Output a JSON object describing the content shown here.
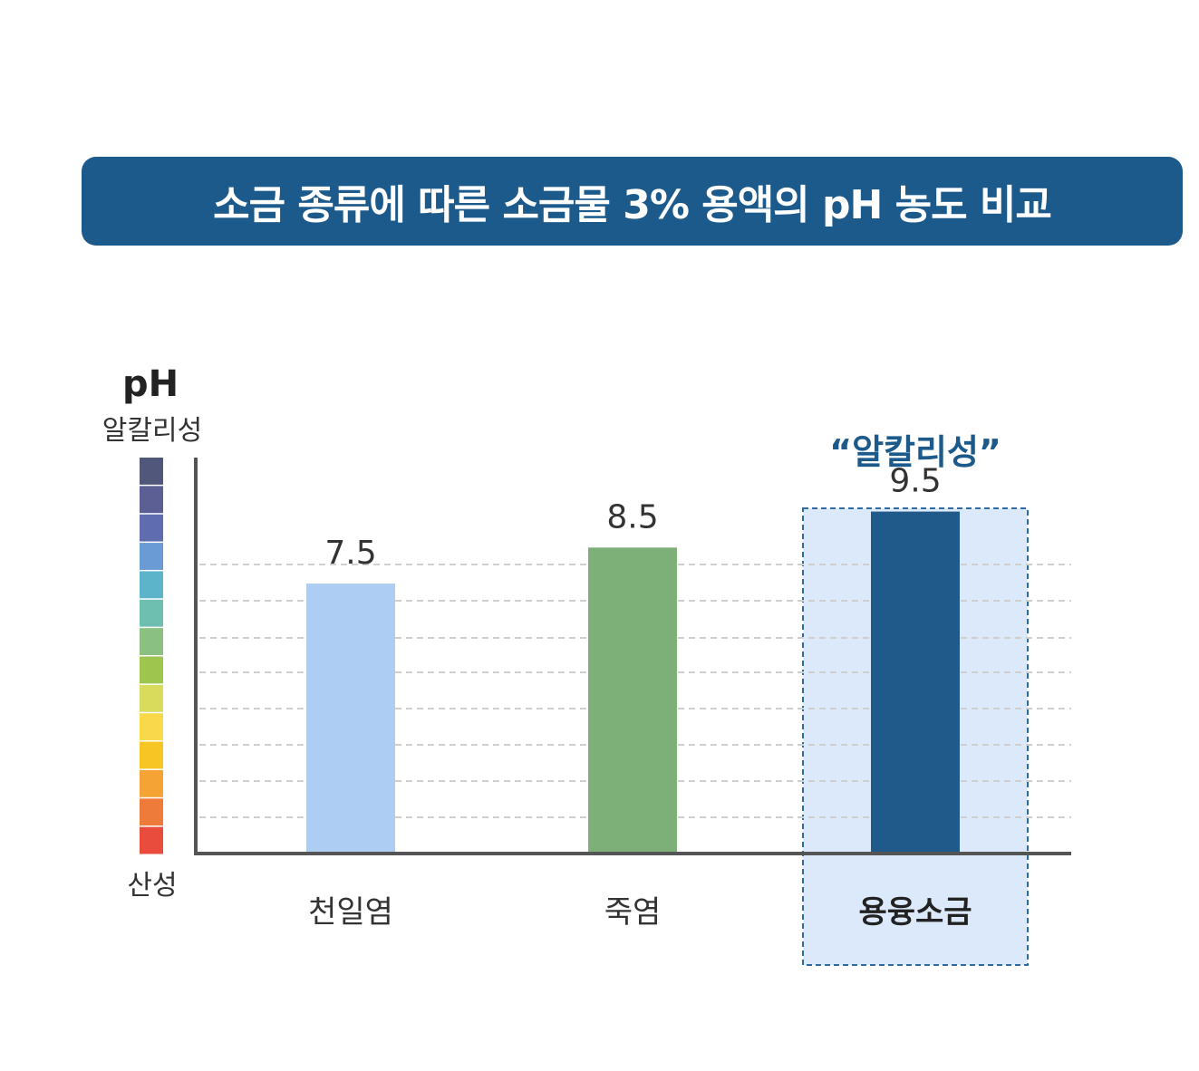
{
  "chart_data": {
    "type": "bar",
    "title": "소금 종류에 따른 소금물 3% 용액의 pH 농도 비교",
    "ylabel": "pH",
    "scale_top_label": "알칼리성",
    "scale_bottom_label": "산성",
    "categories": [
      "천일염",
      "죽염",
      "용융소금"
    ],
    "values": [
      7.5,
      8.5,
      9.5
    ],
    "value_labels": [
      "7.5",
      "8.5",
      "9.5"
    ],
    "bar_colors": [
      "#aecdf3",
      "#7daf78",
      "#1f5a8a"
    ],
    "highlight_index": 2,
    "highlight_label": "“알칼리성”",
    "ylim": [
      0,
      11
    ],
    "grid": true,
    "scale_colors": [
      "#e94b3c",
      "#ef7b3a",
      "#f5a334",
      "#f8c624",
      "#f9d94a",
      "#d9db5c",
      "#9ec64f",
      "#8bc180",
      "#6fbfb0",
      "#5bb4c9",
      "#6a9bd4",
      "#5f6db0",
      "#5b5f94",
      "#50577a"
    ]
  }
}
